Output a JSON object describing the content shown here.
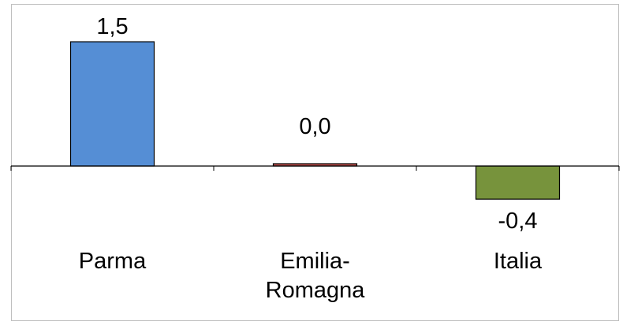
{
  "chart_data": {
    "type": "bar",
    "categories": [
      "Parma",
      "Emilia-Romagna",
      "Italia"
    ],
    "category_label_lines": [
      [
        "Parma"
      ],
      [
        "Emilia-",
        "Romagna"
      ],
      [
        "Italia"
      ]
    ],
    "values": [
      1.5,
      0.0,
      -0.4
    ],
    "value_labels": [
      "1,5",
      "0,0",
      "-0,4"
    ],
    "bar_colors": [
      "#558ED5",
      "#C0504D",
      "#77933C"
    ],
    "title": "",
    "xlabel": "",
    "ylabel": "",
    "ylim": [
      -0.56,
      1.5
    ],
    "grid": false,
    "legend": "none"
  }
}
